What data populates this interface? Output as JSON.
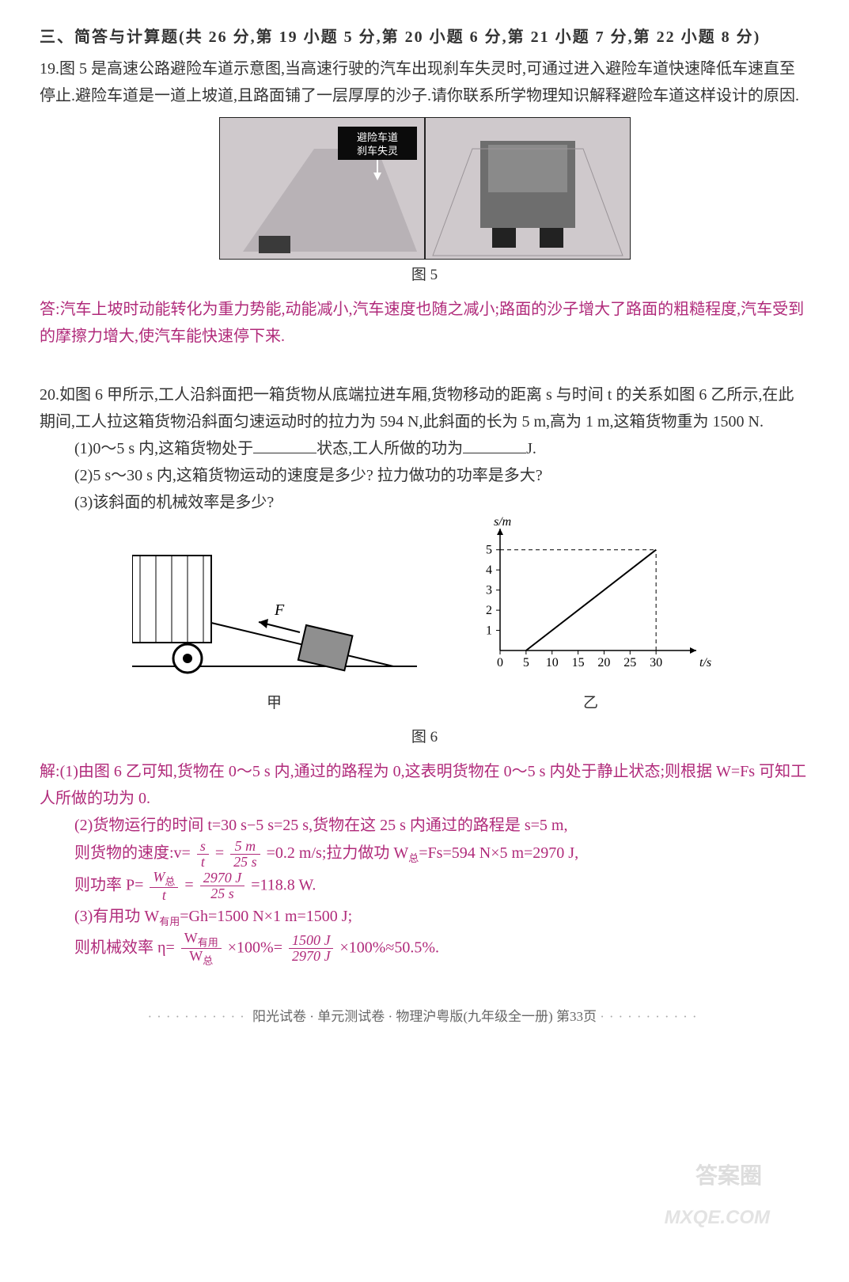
{
  "section": {
    "title": "三、简答与计算题(共 26 分,第 19 小题 5 分,第 20 小题 6 分,第 21 小题 7 分,第 22 小题 8 分)"
  },
  "q19": {
    "num": "19.",
    "text": "图 5 是高速公路避险车道示意图,当高速行驶的汽车出现刹车失灵时,可通过进入避险车道快速降低车速直至停止.避险车道是一道上坡道,且路面铺了一层厚厚的沙子.请你联系所学物理知识解释避险车道这样设计的原因.",
    "fig_label": "图 5",
    "sign_text": "避险车道\n刹车失灵",
    "answer_prefix": "答:",
    "answer": "汽车上坡时动能转化为重力势能,动能减小,汽车速度也随之减小;路面的沙子增大了路面的粗糙程度,汽车受到的摩擦力增大,使汽车能快速停下来.",
    "colors": {
      "answer": "#b02a7a",
      "photo_bg": "#cfc9cc",
      "photo_border": "#222"
    }
  },
  "q20": {
    "num": "20.",
    "intro": "如图 6 甲所示,工人沿斜面把一箱货物从底端拉进车厢,货物移动的距离 s 与时间 t 的关系如图 6 乙所示,在此期间,工人拉这箱货物沿斜面匀速运动时的拉力为 594 N,此斜面的长为 5 m,高为 1 m,这箱货物重为 1500 N.",
    "p1": "(1)0～5 s 内,这箱货物处于",
    "p1b": "状态,工人所做的功为",
    "p1c": "J.",
    "p2": "(2)5 s～30 s 内,这箱货物运动的速度是多少? 拉力做功的功率是多大?",
    "p3": "(3)该斜面的机械效率是多少?",
    "fig_label_a": "甲",
    "fig_label_b": "乙",
    "fig_label": "图 6",
    "diagram_a": {
      "force_label": "F",
      "box_color": "#8f8f8f",
      "line_color": "#000",
      "bg": "#fff"
    },
    "chart_b": {
      "type": "line",
      "xlabel": "t/s",
      "ylabel": "s/m",
      "xlim": [
        0,
        35
      ],
      "ylim": [
        0,
        5.5
      ],
      "xticks": [
        0,
        5,
        10,
        15,
        20,
        25,
        30
      ],
      "yticks": [
        1,
        2,
        3,
        4,
        5
      ],
      "line_points": [
        [
          5,
          0
        ],
        [
          30,
          5
        ]
      ],
      "dash_v": [
        30,
        0,
        30,
        5
      ],
      "dash_h": [
        0,
        5,
        30,
        5
      ],
      "axis_color": "#000",
      "line_color": "#000",
      "dash_color": "#000",
      "background_color": "#ffffff",
      "label_fontsize": 16
    },
    "solution": {
      "prefix": "解:",
      "l1": "(1)由图 6 乙可知,货物在 0～5 s 内,通过的路程为 0,这表明货物在 0～5 s 内处于静止状态;则根据 W=Fs 可知工人所做的功为 0.",
      "l2a": "(2)货物运行的时间 t=30 s−5 s=25 s,货物在这 25 s 内通过的路程是 s=5 m,",
      "l2b_pre": "则货物的速度:v=",
      "l2b_f1n": "s",
      "l2b_f1d": "t",
      "l2b_eq": "=",
      "l2b_f2n": "5 m",
      "l2b_f2d": "25 s",
      "l2b_post": "=0.2 m/s;拉力做功 W",
      "l2b_sub1": "总",
      "l2b_post2": "=Fs=594 N×5 m=2970 J,",
      "l2c_pre": "则功率 P=",
      "l2c_f1n": "W总",
      "l2c_f1d": "t",
      "l2c_eq": "=",
      "l2c_f2n": "2970 J",
      "l2c_f2d": "25 s",
      "l2c_post": "=118.8 W.",
      "l3a": "(3)有用功 W",
      "l3a_sub": "有用",
      "l3a_post": "=Gh=1500 N×1 m=1500 J;",
      "l3b_pre": "则机械效率 η=",
      "l3b_f1n": "W有用",
      "l3b_f1d": "W总",
      "l3b_mid": "×100%=",
      "l3b_f2n": "1500 J",
      "l3b_f2d": "2970 J",
      "l3b_post": "×100%≈50.5%."
    }
  },
  "footer": {
    "text": "阳光试卷 · 单元测试卷 · 物理沪粤版(九年级全一册)  第33页"
  },
  "watermark": {
    "line1": "答案圈",
    "line2": "MXQE.COM"
  }
}
